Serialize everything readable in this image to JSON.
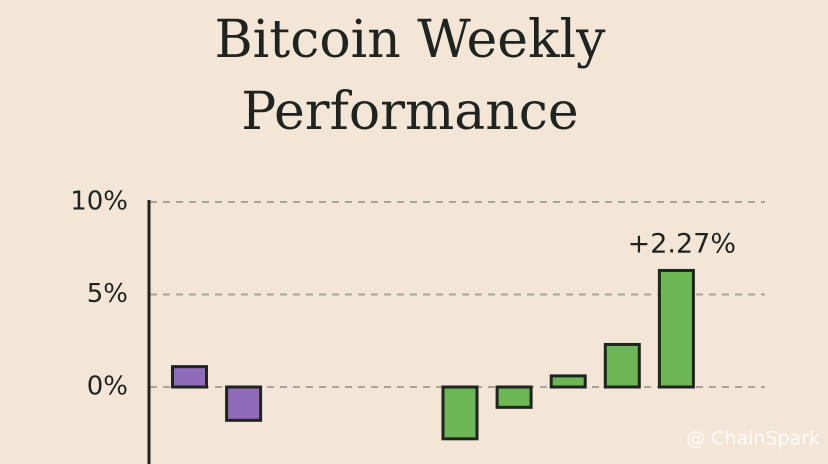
{
  "chart_data": {
    "type": "bar",
    "title": "Bitcoin Weekly Performance",
    "categories": [
      null,
      null,
      null,
      null,
      null,
      null,
      null,
      null,
      null,
      null
    ],
    "values": [
      1.1,
      -1.8,
      null,
      null,
      null,
      -2.8,
      -1.1,
      0.6,
      2.3,
      6.3
    ],
    "colors": [
      "#8f6bb9",
      "#8f6bb9",
      "#6cb655",
      "#6cb655",
      "#6cb655",
      "#6cb655",
      "#6cb655",
      "#6cb655",
      "#6cb655",
      "#6cb655"
    ],
    "ylim": [
      -4.2,
      10
    ],
    "yticks": [
      {
        "value": 0,
        "label": "0%"
      },
      {
        "value": 5,
        "label": "5%"
      },
      {
        "value": 10,
        "label": "10%"
      }
    ],
    "grid": true,
    "annotation": "+2.27%",
    "watermark": "@ ChainSpark"
  }
}
